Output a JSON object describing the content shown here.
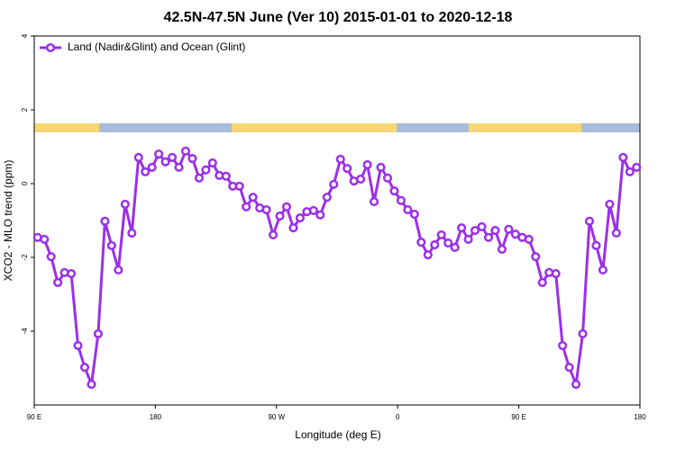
{
  "chart_data": {
    "type": "line",
    "title": "42.5N-47.5N June (Ver 10)   2015-01-01 to 2020-12-18",
    "x_label": "Longitude (deg E)",
    "y_label": "XCO2 - MLO trend (ppm)",
    "xlim": [
      90,
      540
    ],
    "xticks": [
      {
        "value": 90,
        "label": "90 E"
      },
      180,
      {
        "value": 270,
        "label": "90 W"
      },
      {
        "value": 360,
        "label": "0"
      },
      {
        "value": 450,
        "label": "90 E"
      },
      {
        "value": 540,
        "label": "180"
      }
    ],
    "ylim": [
      -6,
      4
    ],
    "yticks": [
      -4,
      -2,
      0,
      2,
      4
    ],
    "x": [
      92.5,
      97.5,
      102.5,
      107.5,
      112.5,
      117.5,
      122.5,
      127.5,
      132.5,
      137.5,
      142.5,
      147.5,
      152.5,
      157.5,
      162.5,
      167.5,
      172.5,
      177.5,
      182.5,
      187.5,
      192.5,
      197.5,
      202.5,
      207.5,
      212.5,
      217.5,
      222.5,
      227.5,
      232.5,
      237.5,
      242.5,
      247.5,
      252.5,
      257.5,
      262.5,
      267.5,
      272.5,
      277.5,
      282.5,
      287.5,
      292.5,
      297.5,
      302.5,
      307.5,
      312.5,
      317.5,
      322.5,
      327.5,
      332.5,
      337.5,
      342.5,
      347.5,
      352.5,
      357.5,
      362.5,
      367.5,
      372.5,
      377.5,
      382.5,
      387.5,
      392.5,
      397.5,
      402.5,
      407.5,
      412.5,
      417.5,
      422.5,
      427.5,
      432.5,
      437.5,
      442.5,
      447.5,
      452.5,
      457.5,
      462.5,
      467.5,
      472.5,
      477.5,
      482.5,
      487.5,
      492.5,
      497.5,
      502.5,
      507.5,
      512.5,
      517.5,
      522.5,
      527.5,
      532.5,
      537.5
    ],
    "series": [
      {
        "name": "Land (Nadir&Glint) and Ocean (Glint)",
        "color": "#9b30e8",
        "values": [
          -1.46,
          -1.51,
          -1.98,
          -2.68,
          -2.41,
          -2.44,
          -4.39,
          -4.98,
          -5.44,
          -4.07,
          -1.02,
          -1.68,
          -2.34,
          -0.56,
          -1.34,
          0.71,
          0.32,
          0.44,
          0.8,
          0.59,
          0.71,
          0.44,
          0.88,
          0.68,
          0.15,
          0.37,
          0.56,
          0.22,
          0.2,
          -0.07,
          -0.07,
          -0.63,
          -0.37,
          -0.66,
          -0.71,
          -1.39,
          -0.88,
          -0.63,
          -1.2,
          -0.93,
          -0.76,
          -0.73,
          -0.85,
          -0.37,
          -0.02,
          0.66,
          0.41,
          0.07,
          0.12,
          0.51,
          -0.49,
          0.44,
          0.15,
          -0.2,
          -0.46,
          -0.71,
          -0.83,
          -1.59,
          -1.93,
          -1.66,
          -1.39,
          -1.61,
          -1.73,
          -1.2,
          -1.51,
          -1.27,
          -1.17,
          -1.46,
          -1.27,
          -1.78,
          -1.24,
          -1.37,
          -1.46,
          -1.51,
          -1.98,
          -2.68,
          -2.41,
          -2.44,
          -4.39,
          -4.98,
          -5.44,
          -4.07,
          -1.02,
          -1.68,
          -2.34,
          -0.56,
          -1.34,
          0.71,
          0.32,
          0.44
        ]
      }
    ],
    "legend": "upper left"
  }
}
